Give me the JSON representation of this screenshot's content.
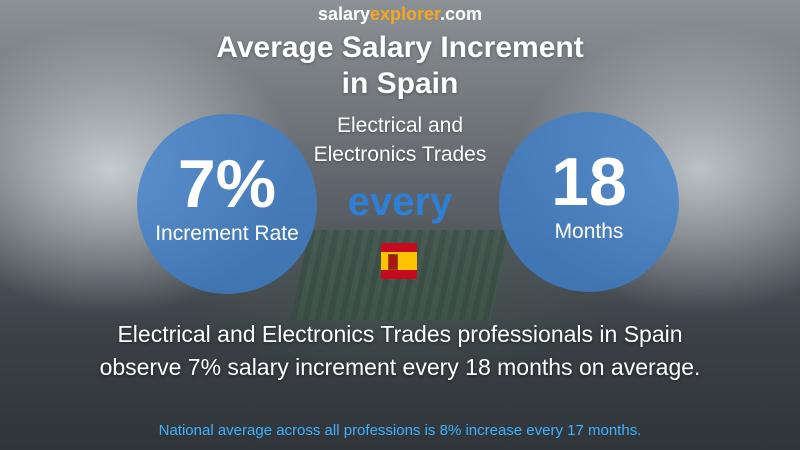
{
  "brand": {
    "part1": "salary",
    "part2": "explorer",
    "part3": ".com"
  },
  "title": {
    "line1": "Average Salary Increment",
    "line2": "in Spain"
  },
  "subtitle": "Electrical and Electronics Trades",
  "left_circle": {
    "value": "7%",
    "label": "Increment Rate"
  },
  "connector": "every",
  "right_circle": {
    "value": "18",
    "label": "Months"
  },
  "flag_icon": "spain-flag-icon",
  "description": {
    "line1": "Electrical and Electronics Trades professionals in Spain",
    "line2": "observe 7% salary increment every 18 months on average."
  },
  "footer": "National average across all professions is 8% increase every 17 months.",
  "colors": {
    "circle": "#3e80cd",
    "brand_accent": "#f5a623",
    "every_text": "#2f7fd6",
    "footer_text": "#3fb2ff"
  }
}
